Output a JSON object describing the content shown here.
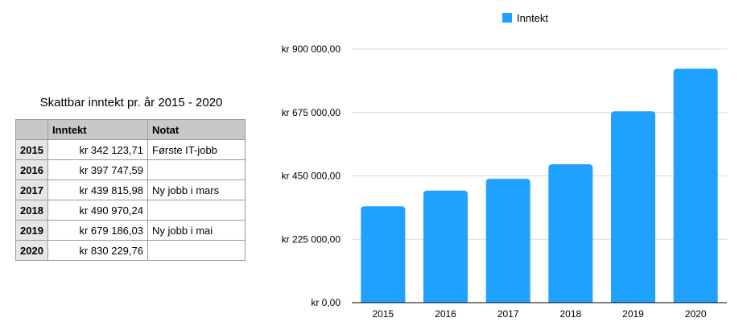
{
  "table": {
    "title": "Skattbar inntekt pr. år 2015 - 2020",
    "headers": [
      "",
      "Inntekt",
      "Notat"
    ],
    "rows": [
      {
        "year": "2015",
        "amount": "kr 342 123,71",
        "note": "Første IT-jobb"
      },
      {
        "year": "2016",
        "amount": "kr 397 747,59",
        "note": ""
      },
      {
        "year": "2017",
        "amount": "kr 439 815,98",
        "note": "Ny jobb i mars"
      },
      {
        "year": "2018",
        "amount": "kr 490 970,24",
        "note": ""
      },
      {
        "year": "2019",
        "amount": "kr 679 186,03",
        "note": "Ny jobb i mai"
      },
      {
        "year": "2020",
        "amount": "kr 830 229,76",
        "note": ""
      }
    ]
  },
  "chart_data": {
    "type": "bar",
    "categories": [
      "2015",
      "2016",
      "2017",
      "2018",
      "2019",
      "2020"
    ],
    "series": [
      {
        "name": "Inntekt",
        "color": "#1fa2ff",
        "values": [
          342123.71,
          397747.59,
          439815.98,
          490970.24,
          679186.03,
          830229.76
        ]
      }
    ],
    "ylim": [
      0,
      900000
    ],
    "yticks": [
      0,
      225000,
      450000,
      675000,
      900000
    ],
    "ytick_labels": [
      "kr 0,00",
      "kr 225 000,00",
      "kr 450 000,00",
      "kr 675 000,00",
      "kr 900 000,00"
    ],
    "legend_position": "top-center",
    "grid": true,
    "colors": {
      "grid": "#d9d9d9",
      "axis": "#000000"
    }
  }
}
